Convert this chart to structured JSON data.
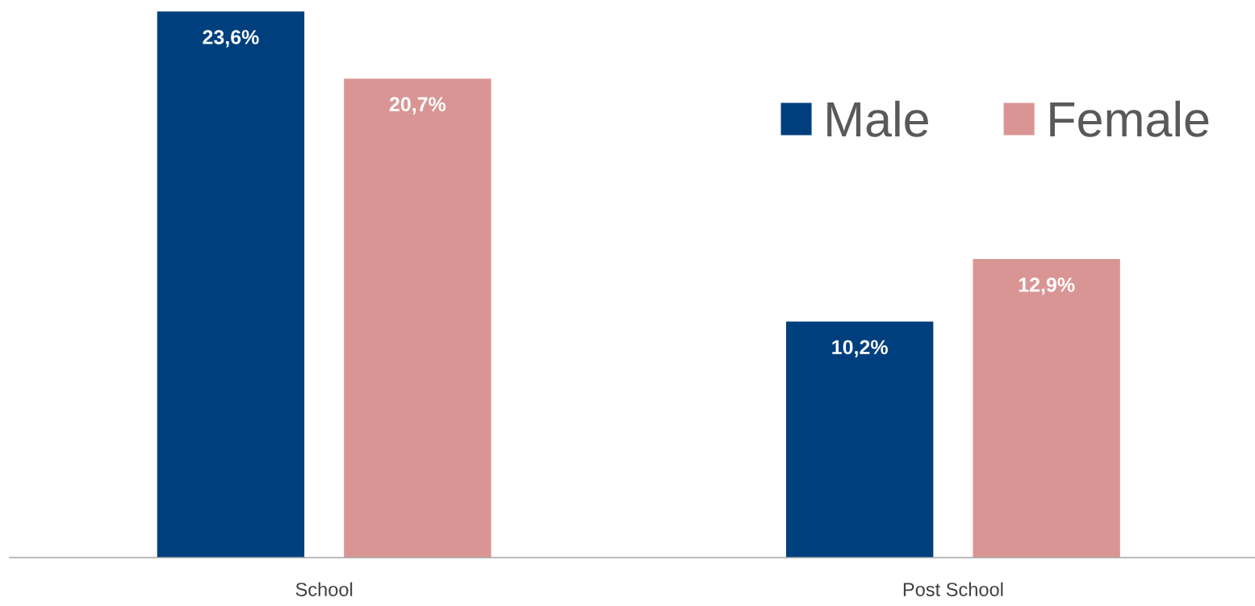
{
  "chart_data": {
    "type": "bar",
    "categories": [
      "School",
      "Post School"
    ],
    "series": [
      {
        "name": "Male",
        "color": "#003f7d",
        "values": [
          23.6,
          10.2
        ],
        "value_labels": [
          "23,6%",
          "10,2%"
        ]
      },
      {
        "name": "Female",
        "color": "#d99594",
        "values": [
          20.7,
          12.9
        ],
        "value_labels": [
          "20,7%",
          "12,9%"
        ]
      }
    ],
    "grid": false,
    "legend": "top right"
  }
}
